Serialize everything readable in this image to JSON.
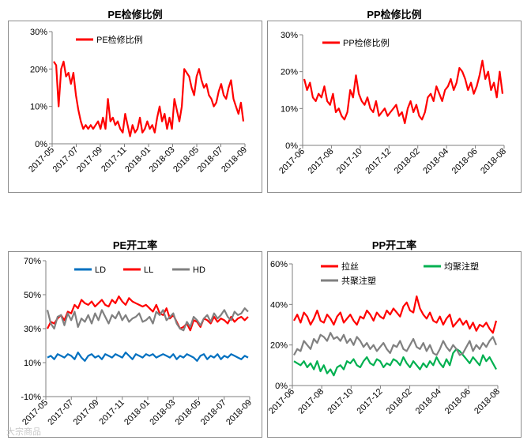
{
  "chart_data": [
    {
      "type": "line",
      "title": "PE检修比例",
      "y_ticks": [
        "0%",
        "10%",
        "20%",
        "30%"
      ],
      "ylim": [
        0,
        30
      ],
      "x_ticks": [
        "2017-05",
        "2017-07",
        "2017-09",
        "2017-11",
        "2018-01",
        "2018-03",
        "2018-05",
        "2018-07",
        "2018-09"
      ],
      "legend": "top-left",
      "series": [
        {
          "name": "PE检修比例",
          "color": "#ff0000",
          "values": [
            22,
            21,
            10,
            20,
            22,
            18,
            19,
            16,
            19,
            13,
            9,
            6,
            4,
            5,
            4,
            5,
            4,
            5,
            6,
            4,
            7,
            4,
            12,
            6,
            7,
            5,
            6,
            4,
            3,
            8,
            5,
            2,
            5,
            3,
            4,
            7,
            3,
            4,
            6,
            4,
            5,
            3,
            7,
            10,
            6,
            8,
            4,
            7,
            4,
            12,
            9,
            6,
            10,
            20,
            19,
            18,
            15,
            13,
            18,
            20,
            17,
            15,
            16,
            13,
            12,
            10,
            11,
            14,
            16,
            13,
            12,
            15,
            17,
            12,
            10,
            8,
            11,
            6
          ]
        }
      ]
    },
    {
      "type": "line",
      "title": "PP检修比例",
      "y_ticks": [
        "0%",
        "10%",
        "20%",
        "30%"
      ],
      "ylim": [
        0,
        30
      ],
      "x_ticks": [
        "2017-06",
        "2017-08",
        "2017-10",
        "2017-12",
        "2018-02",
        "2018-04",
        "2018-06",
        "2018-08"
      ],
      "legend": "top-left",
      "series": [
        {
          "name": "PP检修比例",
          "color": "#ff0000",
          "values": [
            18,
            15,
            17,
            13,
            12,
            14,
            13,
            16,
            12,
            11,
            14,
            9,
            10,
            8,
            7,
            9,
            15,
            13,
            19,
            14,
            12,
            11,
            13,
            10,
            9,
            12,
            8,
            9,
            10,
            8,
            9,
            10,
            11,
            8,
            9,
            6,
            10,
            12,
            9,
            11,
            8,
            7,
            9,
            13,
            14,
            12,
            16,
            14,
            12,
            15,
            16,
            18,
            15,
            17,
            21,
            20,
            18,
            15,
            17,
            14,
            16,
            19,
            23,
            18,
            20,
            15,
            17,
            13,
            20,
            14
          ]
        }
      ]
    },
    {
      "type": "line",
      "title": "PE开工率",
      "y_ticks": [
        "-10%",
        "10%",
        "30%",
        "50%",
        "70%"
      ],
      "ylim": [
        -10,
        70
      ],
      "x_ticks": [
        "2017-05",
        "2017-07",
        "2017-09",
        "2017-11",
        "2018-01",
        "2018-03",
        "2018-05",
        "2018-07",
        "2018-09"
      ],
      "legend": "top",
      "series": [
        {
          "name": "LD",
          "color": "#0070c0",
          "values": [
            13,
            14,
            12,
            15,
            14,
            13,
            15,
            14,
            12,
            16,
            13,
            11,
            14,
            15,
            13,
            14,
            12,
            15,
            14,
            13,
            15,
            14,
            13,
            16,
            14,
            12,
            15,
            14,
            13,
            15,
            14,
            15,
            13,
            14,
            15,
            14,
            13,
            15,
            12,
            14,
            13,
            15,
            14,
            13,
            11,
            14,
            15,
            12,
            14,
            13,
            15,
            12,
            14,
            13,
            15,
            14,
            13,
            12,
            14,
            13
          ]
        },
        {
          "name": "LL",
          "color": "#ff0000",
          "values": [
            30,
            34,
            33,
            36,
            38,
            35,
            40,
            39,
            44,
            42,
            47,
            45,
            44,
            46,
            43,
            45,
            47,
            44,
            43,
            47,
            45,
            49,
            46,
            44,
            48,
            46,
            45,
            44,
            43,
            44,
            42,
            40,
            44,
            39,
            38,
            42,
            36,
            38,
            34,
            30,
            31,
            33,
            29,
            35,
            34,
            31,
            36,
            35,
            33,
            37,
            34,
            36,
            35,
            33,
            37,
            34,
            36,
            37,
            35,
            37
          ]
        },
        {
          "name": "HD",
          "color": "#808080",
          "values": [
            41,
            33,
            30,
            37,
            38,
            32,
            39,
            35,
            40,
            31,
            36,
            34,
            38,
            33,
            39,
            35,
            41,
            37,
            33,
            38,
            36,
            40,
            35,
            38,
            34,
            36,
            37,
            39,
            34,
            35,
            37,
            33,
            40,
            38,
            41,
            35,
            37,
            39,
            33,
            30,
            29,
            34,
            31,
            37,
            35,
            32,
            36,
            38,
            34,
            39,
            36,
            38,
            41,
            37,
            35,
            40,
            38,
            39,
            42,
            40
          ]
        }
      ]
    },
    {
      "type": "line",
      "title": "PP开工率",
      "y_ticks": [
        "0%",
        "20%",
        "40%",
        "60%"
      ],
      "ylim": [
        0,
        60
      ],
      "x_ticks": [
        "2017-06",
        "2017-08",
        "2017-10",
        "2017-12",
        "2018-02",
        "2018-04",
        "2018-06",
        "2018-08"
      ],
      "legend": "top",
      "series": [
        {
          "name": "拉丝",
          "color": "#ff0000",
          "values": [
            32,
            35,
            31,
            36,
            34,
            30,
            33,
            37,
            32,
            31,
            35,
            33,
            30,
            34,
            36,
            31,
            33,
            35,
            32,
            30,
            34,
            33,
            37,
            35,
            32,
            36,
            34,
            33,
            37,
            35,
            38,
            36,
            34,
            39,
            41,
            37,
            36,
            44,
            38,
            35,
            33,
            36,
            32,
            31,
            34,
            30,
            33,
            35,
            29,
            31,
            33,
            30,
            32,
            28,
            31,
            27,
            30,
            29,
            31,
            28,
            26,
            32
          ]
        },
        {
          "name": "均聚注塑",
          "color": "#00b050",
          "values": [
            12,
            11,
            10,
            12,
            9,
            11,
            8,
            12,
            7,
            10,
            6,
            8,
            5,
            9,
            10,
            8,
            12,
            11,
            13,
            10,
            9,
            12,
            14,
            11,
            10,
            13,
            12,
            9,
            11,
            10,
            13,
            12,
            10,
            14,
            11,
            9,
            12,
            10,
            8,
            11,
            9,
            12,
            10,
            14,
            11,
            9,
            13,
            10,
            16,
            18,
            17,
            15,
            13,
            11,
            14,
            12,
            10,
            15,
            12,
            14,
            11,
            8
          ]
        },
        {
          "name": "共聚注塑",
          "color": "#808080",
          "values": [
            15,
            18,
            17,
            22,
            20,
            18,
            23,
            21,
            25,
            24,
            22,
            26,
            23,
            24,
            22,
            25,
            21,
            23,
            20,
            24,
            22,
            19,
            21,
            18,
            20,
            17,
            19,
            21,
            18,
            16,
            20,
            19,
            22,
            18,
            17,
            20,
            23,
            19,
            18,
            21,
            17,
            20,
            16,
            15,
            18,
            22,
            19,
            17,
            20,
            18,
            15,
            16,
            19,
            22,
            17,
            20,
            18,
            21,
            19,
            22,
            24,
            20
          ]
        }
      ]
    }
  ],
  "watermark": "大宗商品"
}
